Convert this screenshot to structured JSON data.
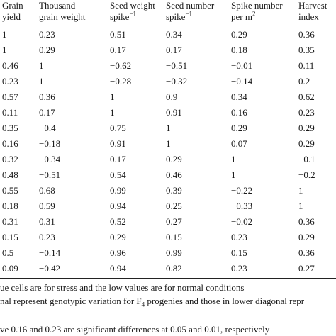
{
  "table": {
    "headers": [
      {
        "line1": "Grain",
        "line2": "yield"
      },
      {
        "line1": "Thousand",
        "line2": "grain weight"
      },
      {
        "line1": "Seed weight",
        "line2": "spike",
        "sup": "−1"
      },
      {
        "line1": "Seed number",
        "line2": "spike",
        "sup": "−1"
      },
      {
        "line1": "Spike number",
        "line2": "per m",
        "sup": "2"
      },
      {
        "line1": "Harvest",
        "line2": "index"
      }
    ],
    "rows": [
      [
        "1",
        "0.23",
        "0.51",
        "0.34",
        "0.29",
        "0.36"
      ],
      [
        "1",
        "0.29",
        "0.17",
        "0.17",
        "0.18",
        "0.35"
      ],
      [
        "0.46",
        "1",
        "−0.62",
        "−0.51",
        "−0.01",
        "0.11"
      ],
      [
        "0.23",
        "1",
        "−0.28",
        "−0.32",
        "−0.14",
        "0.2"
      ],
      [
        "0.57",
        "0.36",
        "1",
        "0.9",
        "0.34",
        "0.62"
      ],
      [
        "0.11",
        "0.17",
        "1",
        "0.91",
        "0.16",
        "0.23"
      ],
      [
        "0.35",
        "−0.4",
        "0.75",
        "1",
        "0.29",
        "0.29"
      ],
      [
        "0.16",
        "−0.18",
        "0.91",
        "1",
        "0.07",
        "0.29"
      ],
      [
        "0.32",
        "−0.34",
        "0.17",
        "0.29",
        "1",
        "−0.1"
      ],
      [
        "0.48",
        "−0.51",
        "0.54",
        "0.46",
        "1",
        "−0.2"
      ],
      [
        "0.55",
        "0.68",
        "0.99",
        "0.39",
        "−0.22",
        "1"
      ],
      [
        "0.18",
        "0.59",
        "0.94",
        "0.25",
        "−0.33",
        "1"
      ],
      [
        "0.31",
        "0.31",
        "0.52",
        "0.27",
        "−0.02",
        "0.36"
      ],
      [
        "0.15",
        "0.23",
        "0.29",
        "0.15",
        "0.23",
        "0.29"
      ],
      [
        "0.5",
        "−0.14",
        "0.96",
        "0.99",
        "0.15",
        "0.36"
      ],
      [
        "0.09",
        "−0.42",
        "0.94",
        "0.82",
        "0.23",
        "0.27"
      ]
    ]
  },
  "footnotes": [
    "ue cells are for stress and the low values are for normal conditions",
    "nal represent genotypic variation for F",
    "ve 0.16 and 0.23 are significant differences at 0.05 and 0.01, respectively"
  ],
  "footnote2_sub": "4",
  "footnote2_rest": " progenies and those in lower diagonal repr"
}
